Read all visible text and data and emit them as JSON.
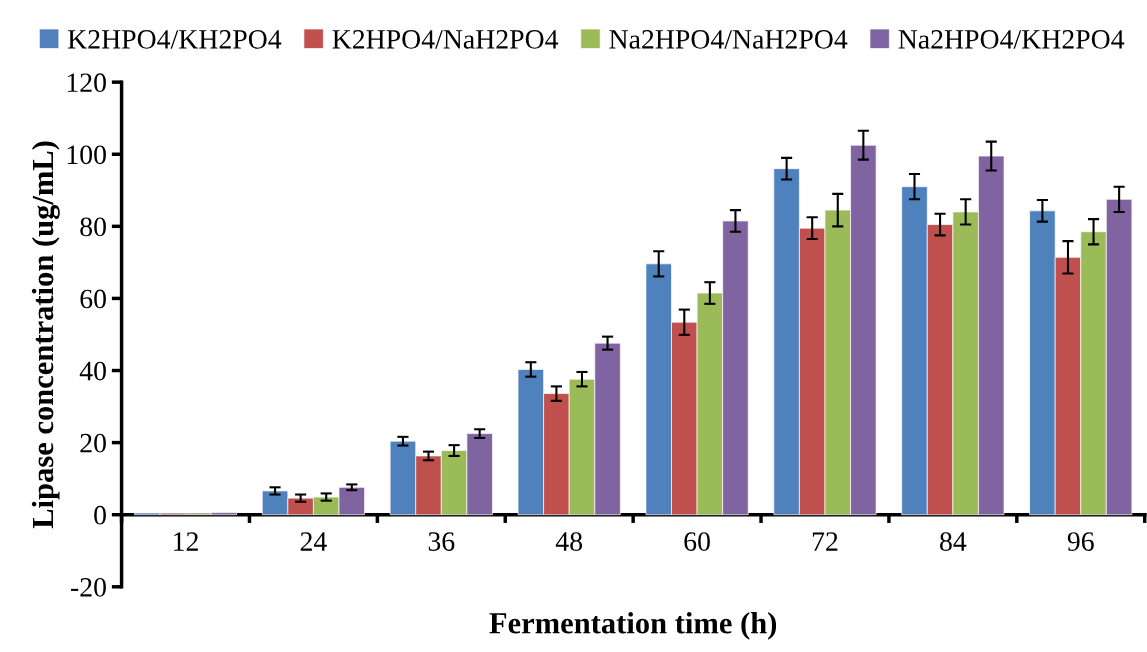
{
  "chart_data": {
    "type": "bar",
    "xlabel": "Fermentation time (h)",
    "ylabel": "Lipase concentration (ug/mL)",
    "categories": [
      "12",
      "24",
      "36",
      "48",
      "60",
      "72",
      "84",
      "96"
    ],
    "series": [
      {
        "name": "K2HPO4/KH2PO4",
        "color": "#4f81bd",
        "values": [
          0.5,
          6.6,
          20.4,
          40.3,
          69.6,
          96,
          91,
          84.3
        ],
        "errors": [
          null,
          1,
          1.2,
          2,
          3.5,
          3,
          3.5,
          3
        ]
      },
      {
        "name": "K2HPO4/NaH2PO4",
        "color": "#c0504d",
        "values": [
          0.3,
          4.6,
          16.3,
          33.6,
          53.4,
          79.5,
          80.5,
          71.4
        ],
        "errors": [
          null,
          1,
          1.2,
          2,
          3.5,
          3,
          3,
          4.5
        ]
      },
      {
        "name": "Na2HPO4/NaH2PO4",
        "color": "#9bbb59",
        "values": [
          0.3,
          4.9,
          17.8,
          37.6,
          61.5,
          84.5,
          84,
          78.5
        ],
        "errors": [
          null,
          1,
          1.5,
          2,
          3,
          4.5,
          3.5,
          3.5
        ]
      },
      {
        "name": "Na2HPO4/KH2PO4",
        "color": "#8064a2",
        "values": [
          0.6,
          7.6,
          22.5,
          47.6,
          81.5,
          102.5,
          99.5,
          87.5
        ],
        "errors": [
          null,
          0.8,
          1.2,
          1.8,
          3,
          4,
          4,
          3.5
        ]
      }
    ],
    "ylim": [
      -20,
      120
    ],
    "yticks": [
      -20,
      0,
      20,
      40,
      60,
      80,
      100,
      120
    ],
    "grid": false,
    "legend": "top"
  }
}
